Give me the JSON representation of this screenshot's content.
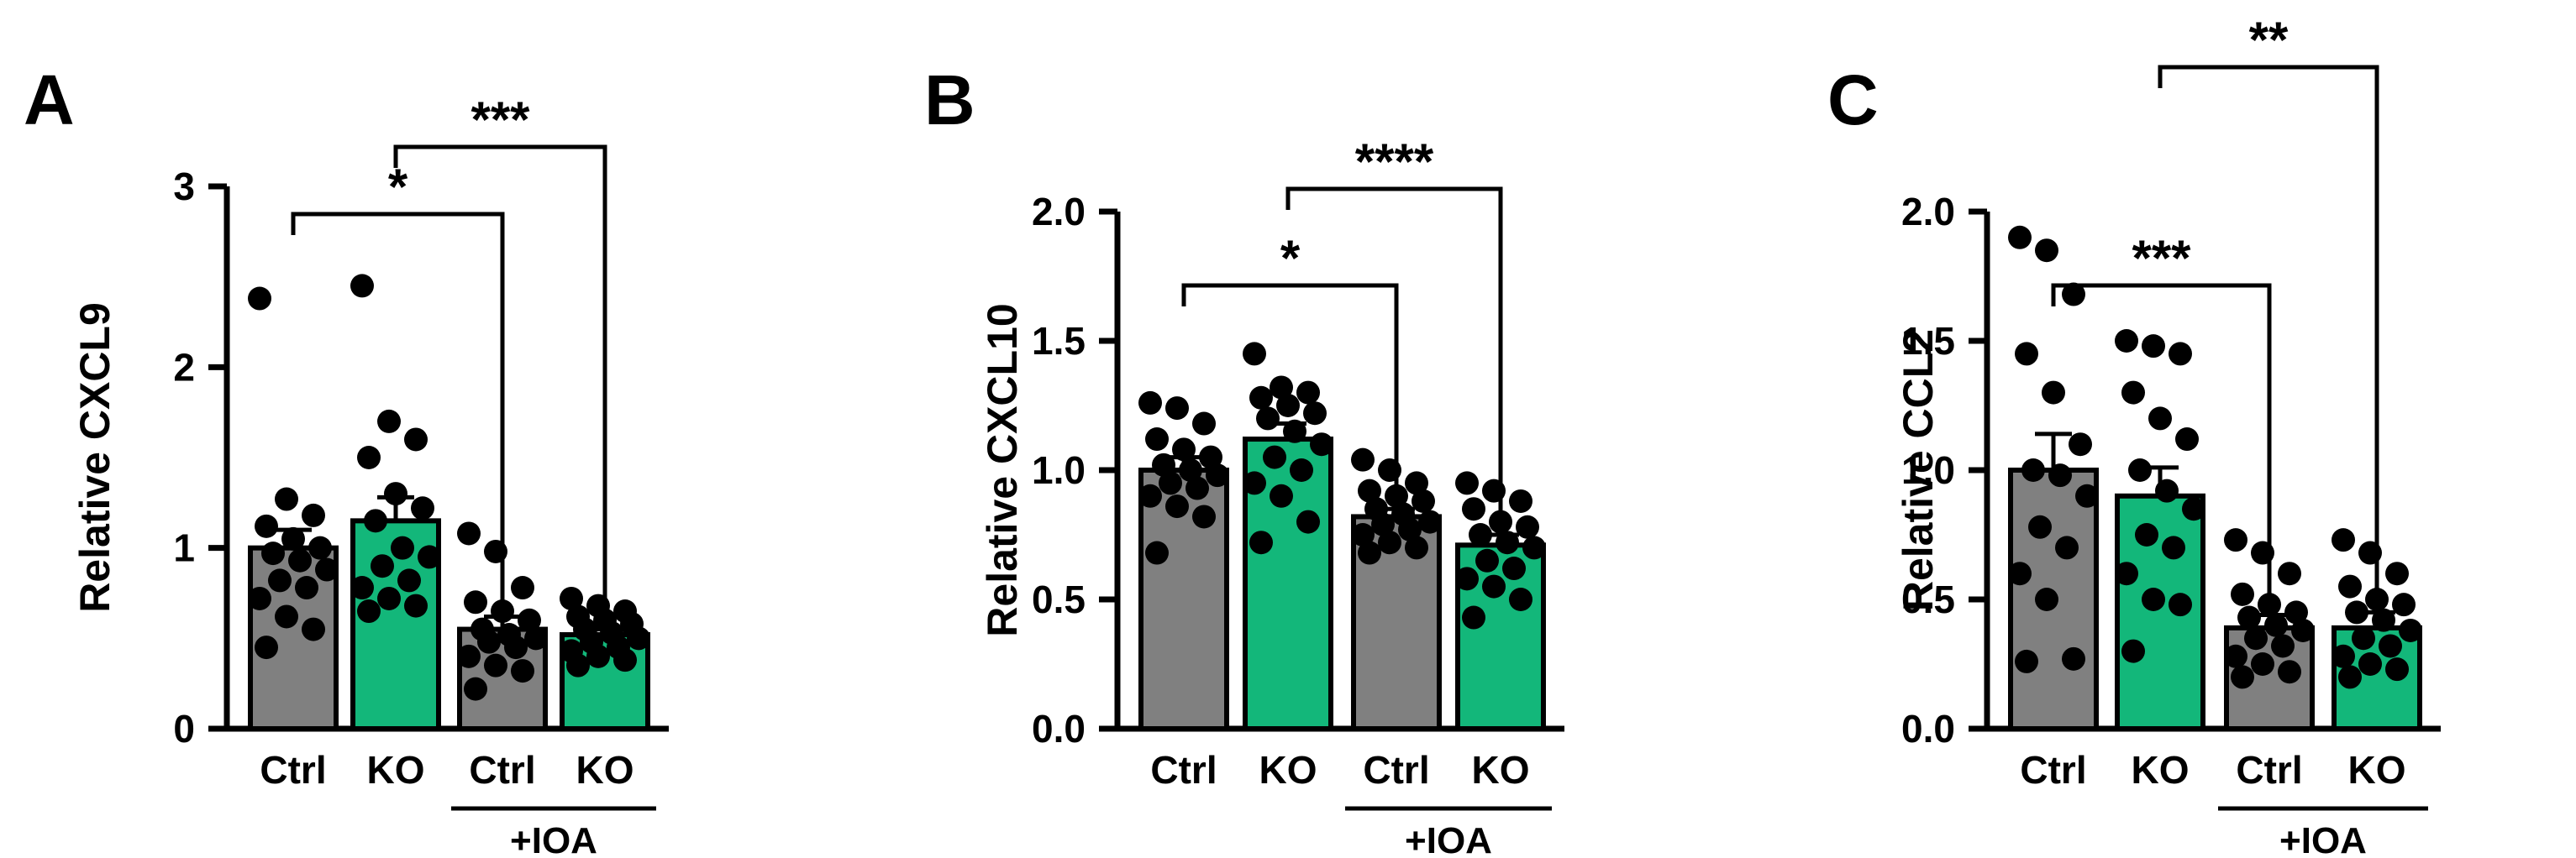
{
  "colors": {
    "ctrl": "#808080",
    "ko": "#13b77a",
    "axis": "#000000",
    "dot": "#000000"
  },
  "chart_data": [
    {
      "panel": "A",
      "type": "bar",
      "ylabel": "Relative CXCL9",
      "ylim": [
        0,
        3
      ],
      "yticks": [
        "0",
        "1",
        "2",
        "3"
      ],
      "categories": [
        "Ctrl",
        "KO",
        "Ctrl",
        "KO"
      ],
      "group_label": "+IOA",
      "bar_colors": [
        "ctrl",
        "ko",
        "ctrl",
        "ko"
      ],
      "values": [
        1.0,
        1.15,
        0.55,
        0.52
      ],
      "sem": [
        0.1,
        0.13,
        0.07,
        0.03
      ],
      "points": [
        [
          2.38,
          1.27,
          1.18,
          1.12,
          1.05,
          1.0,
          0.97,
          0.93,
          0.88,
          0.82,
          0.78,
          0.72,
          0.62,
          0.55,
          0.45
        ],
        [
          2.45,
          1.7,
          1.6,
          1.5,
          1.3,
          1.22,
          1.15,
          1.0,
          0.95,
          0.9,
          0.82,
          0.78,
          0.72,
          0.68,
          0.65
        ],
        [
          1.08,
          0.98,
          0.78,
          0.7,
          0.65,
          0.6,
          0.55,
          0.52,
          0.5,
          0.48,
          0.45,
          0.4,
          0.35,
          0.32,
          0.22
        ],
        [
          0.72,
          0.68,
          0.65,
          0.62,
          0.6,
          0.58,
          0.55,
          0.53,
          0.5,
          0.48,
          0.45,
          0.43,
          0.4,
          0.38,
          0.35
        ]
      ],
      "comparisons": [
        {
          "from": 0,
          "to": 2,
          "label": "*"
        },
        {
          "from": 1,
          "to": 3,
          "label": "***"
        }
      ]
    },
    {
      "panel": "B",
      "type": "bar",
      "ylabel": "Relative CXCL10",
      "ylim": [
        0,
        2
      ],
      "yticks": [
        "0.0",
        "0.5",
        "1.0",
        "1.5",
        "2.0"
      ],
      "categories": [
        "Ctrl",
        "KO",
        "Ctrl",
        "KO"
      ],
      "group_label": "+IOA",
      "bar_colors": [
        "ctrl",
        "ko",
        "ctrl",
        "ko"
      ],
      "values": [
        1.0,
        1.12,
        0.82,
        0.71
      ],
      "sem": [
        0.05,
        0.06,
        0.03,
        0.04
      ],
      "points": [
        [
          1.26,
          1.24,
          1.18,
          1.12,
          1.08,
          1.05,
          1.02,
          1.0,
          0.98,
          0.95,
          0.93,
          0.9,
          0.86,
          0.82,
          0.68
        ],
        [
          1.45,
          1.32,
          1.3,
          1.28,
          1.25,
          1.22,
          1.2,
          1.15,
          1.1,
          1.05,
          1.0,
          0.95,
          0.9,
          0.8,
          0.72
        ],
        [
          1.04,
          1.0,
          0.95,
          0.92,
          0.9,
          0.88,
          0.85,
          0.83,
          0.8,
          0.79,
          0.77,
          0.75,
          0.72,
          0.7,
          0.68
        ],
        [
          0.95,
          0.92,
          0.88,
          0.85,
          0.8,
          0.78,
          0.75,
          0.72,
          0.7,
          0.65,
          0.62,
          0.58,
          0.55,
          0.5,
          0.43
        ]
      ],
      "comparisons": [
        {
          "from": 0,
          "to": 2,
          "label": "*"
        },
        {
          "from": 1,
          "to": 3,
          "label": "****"
        }
      ]
    },
    {
      "panel": "C",
      "type": "bar",
      "ylabel": "Relative CCL2",
      "ylim": [
        0,
        2
      ],
      "yticks": [
        "0.0",
        "0.5",
        "1.0",
        "1.5",
        "2.0"
      ],
      "categories": [
        "Ctrl",
        "KO",
        "Ctrl",
        "KO"
      ],
      "group_label": "+IOA",
      "bar_colors": [
        "ctrl",
        "ko",
        "ctrl",
        "ko"
      ],
      "values": [
        1.0,
        0.9,
        0.39,
        0.39
      ],
      "sem": [
        0.14,
        0.11,
        0.05,
        0.06
      ],
      "points": [
        [
          1.9,
          1.85,
          1.68,
          1.45,
          1.3,
          1.1,
          1.0,
          0.98,
          0.9,
          0.78,
          0.7,
          0.6,
          0.5,
          0.27,
          0.26
        ],
        [
          1.5,
          1.48,
          1.45,
          1.3,
          1.2,
          1.12,
          1.0,
          0.92,
          0.85,
          0.75,
          0.7,
          0.6,
          0.5,
          0.48,
          0.3
        ],
        [
          0.73,
          0.68,
          0.6,
          0.52,
          0.48,
          0.45,
          0.43,
          0.4,
          0.38,
          0.35,
          0.32,
          0.28,
          0.25,
          0.22,
          0.2
        ],
        [
          0.73,
          0.68,
          0.6,
          0.55,
          0.5,
          0.48,
          0.45,
          0.42,
          0.38,
          0.35,
          0.32,
          0.28,
          0.25,
          0.23,
          0.2
        ]
      ],
      "comparisons": [
        {
          "from": 0,
          "to": 2,
          "label": "***"
        },
        {
          "from": 1,
          "to": 3,
          "label": "**"
        }
      ]
    }
  ]
}
